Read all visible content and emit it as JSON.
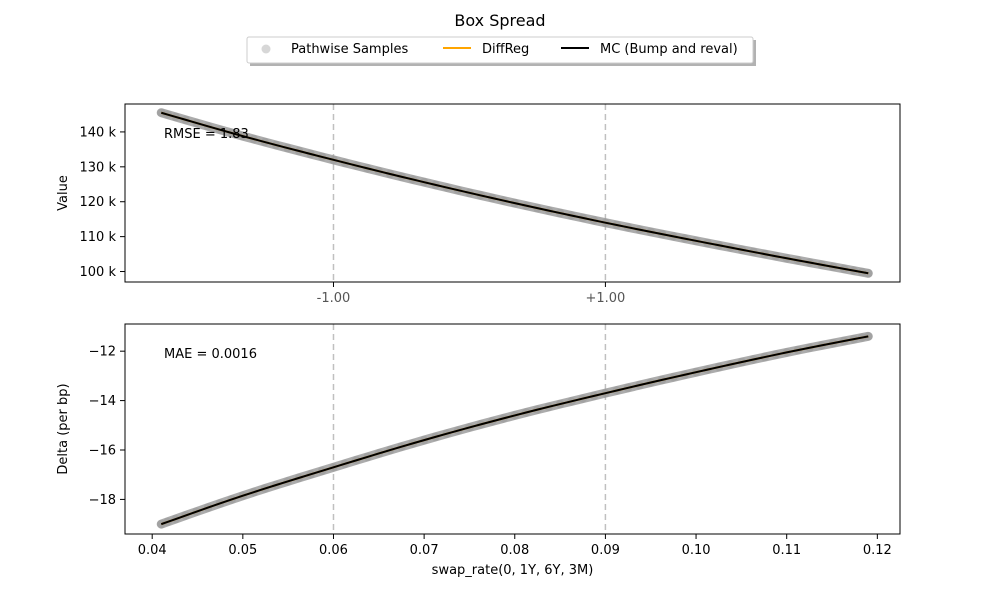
{
  "chart_data": {
    "title": "Box Spread",
    "type": "line",
    "legend": {
      "placement": "top-center",
      "entries": [
        {
          "label": "Pathwise Samples",
          "color": "#bdbdbd",
          "marker": "circle"
        },
        {
          "label": "DiffReg",
          "color": "#ffa500",
          "marker": "line"
        },
        {
          "label": "MC (Bump and reval)",
          "color": "#000000",
          "marker": "line"
        }
      ]
    },
    "xlabel": "swap_rate(0, 1Y, 6Y, 3M)",
    "xlim": [
      0.037,
      0.1225
    ],
    "xticks": [
      0.04,
      0.05,
      0.06,
      0.07,
      0.08,
      0.09,
      0.1,
      0.11,
      0.12
    ],
    "xtick_labels": [
      "0.04",
      "0.05",
      "0.06",
      "0.07",
      "0.08",
      "0.09",
      "0.10",
      "0.11",
      "0.12"
    ],
    "vlines": [
      0.06,
      0.09
    ],
    "vline_labels": [
      "-1.00",
      "+1.00"
    ],
    "top_panel": {
      "ylabel": "Value",
      "ylim": [
        97000,
        148000
      ],
      "yticks": [
        100000,
        110000,
        120000,
        130000,
        140000
      ],
      "ytick_labels": [
        "100 k",
        "110 k",
        "120 k",
        "130 k",
        "140 k"
      ],
      "annotation": "RMSE = 1.83",
      "series": [
        {
          "name": "MC (Bump and reval)",
          "x": [
            0.041,
            0.05,
            0.06,
            0.07,
            0.08,
            0.09,
            0.1,
            0.11,
            0.119
          ],
          "y": [
            145500,
            138800,
            132000,
            125600,
            119600,
            114000,
            108800,
            103800,
            99500
          ]
        }
      ]
    },
    "bottom_panel": {
      "ylabel": "Delta (per bp)",
      "ylim": [
        -19.4,
        -10.9
      ],
      "yticks": [
        -18,
        -16,
        -14,
        -12
      ],
      "ytick_labels": [
        "−18",
        "−16",
        "−14",
        "−12"
      ],
      "annotation": "MAE = 0.0016",
      "series": [
        {
          "name": "MC (Bump and reval)",
          "x": [
            0.041,
            0.05,
            0.06,
            0.07,
            0.08,
            0.09,
            0.1,
            0.11,
            0.119
          ],
          "y": [
            -19.0,
            -17.85,
            -16.7,
            -15.6,
            -14.6,
            -13.7,
            -12.85,
            -12.05,
            -11.4
          ]
        }
      ]
    }
  }
}
